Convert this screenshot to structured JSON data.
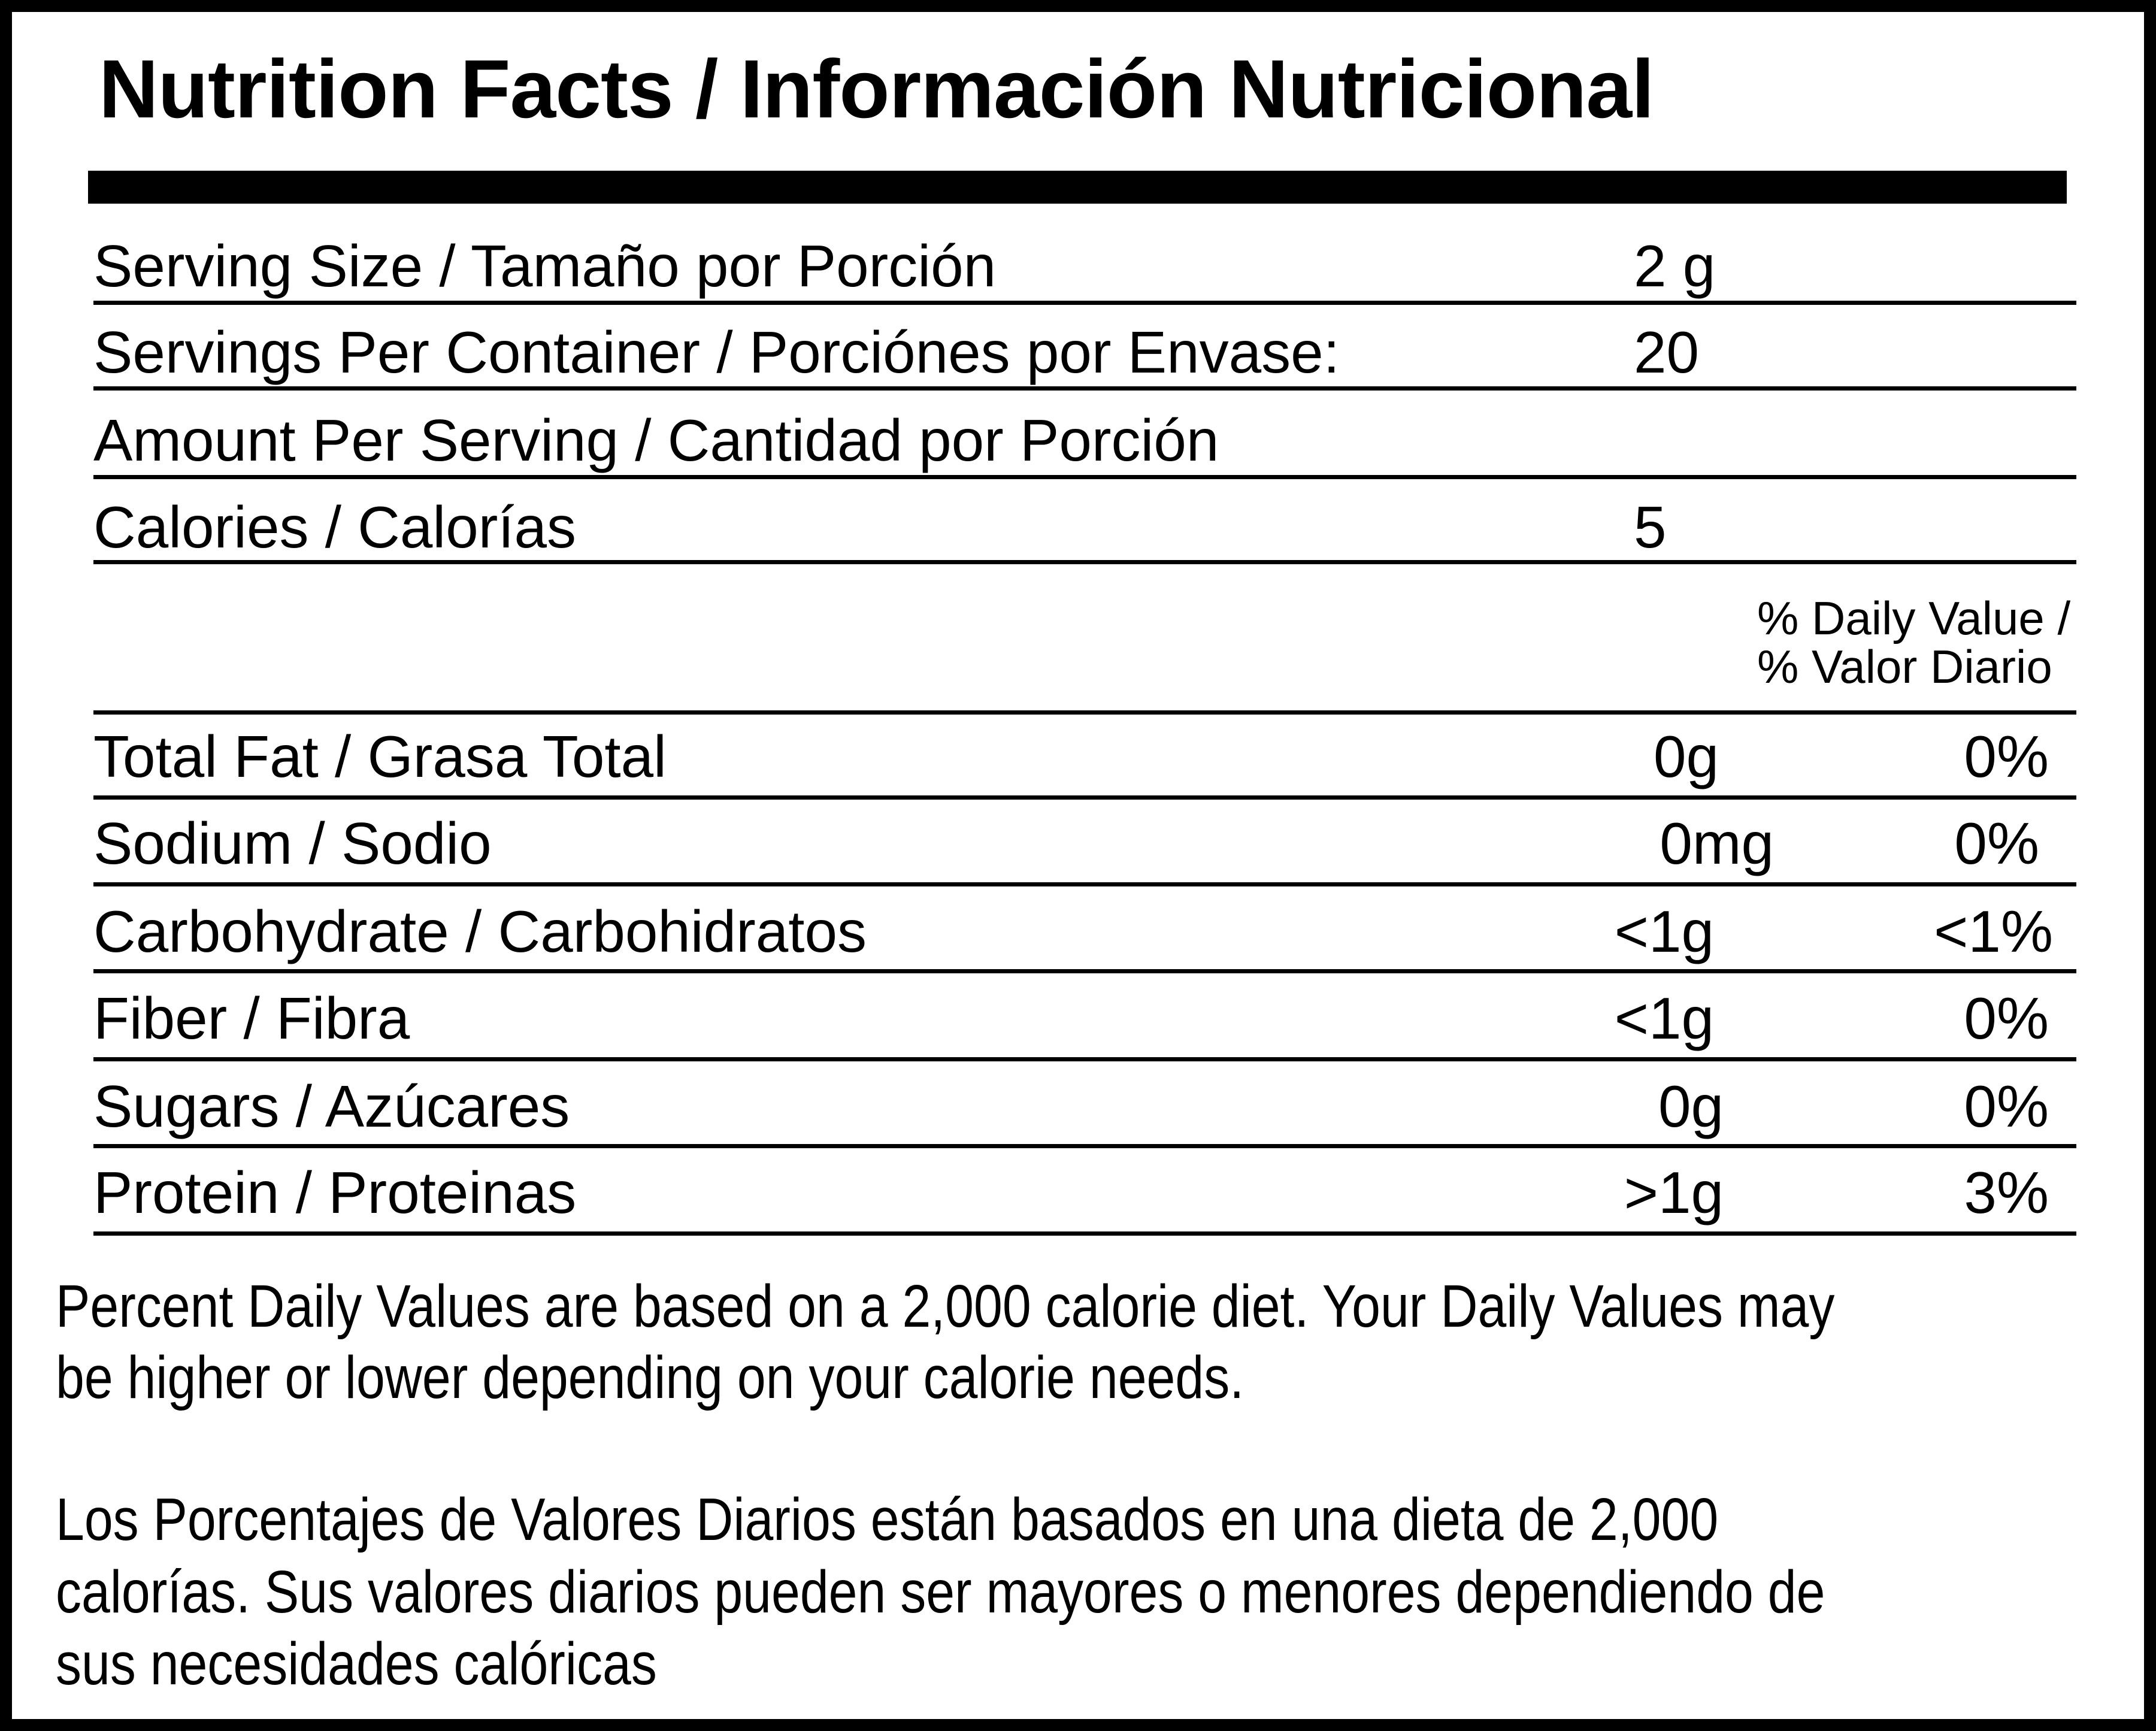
{
  "title": "Nutrition Facts / Información Nutricional",
  "serving": [
    {
      "label": "Serving Size / Tamaño por Porción",
      "value": "2 g"
    },
    {
      "label": "Servings Per Container / Porciónes por Envase:",
      "value": "20"
    },
    {
      "label": "Amount Per Serving / Cantidad por Porción",
      "value": ""
    },
    {
      "label": "Calories / Calorías",
      "value": "5"
    }
  ],
  "dv_header": {
    "line1": "% Daily Value /",
    "line2": "% Valor Diario"
  },
  "nutrients": [
    {
      "label": "Total Fat / Grasa Total",
      "amount": "0g",
      "dv": "0%"
    },
    {
      "label": "Sodium / Sodio",
      "amount": "0mg",
      "dv": "0%"
    },
    {
      "label": "Carbohydrate / Carbohidratos",
      "amount": "<1g",
      "dv": "<1%"
    },
    {
      "label": "Fiber / Fibra",
      "amount": "<1g",
      "dv": "0%"
    },
    {
      "label": "Sugars / Azúcares",
      "amount": "0g",
      "dv": "0%"
    },
    {
      "label": "Protein / Proteinas",
      "amount": ">1g",
      "dv": "3%"
    }
  ],
  "footnote_en": [
    "Percent Daily Values are based on a 2,000 calorie diet. Your Daily Values may",
    "be higher or lower depending on your calorie needs."
  ],
  "footnote_es": [
    "Los Porcentajes de Valores Diarios están basados en una dieta de 2,000",
    "calorías. Sus valores diarios pueden ser mayores o menores dependiendo de",
    "sus necesidades calóricas"
  ]
}
